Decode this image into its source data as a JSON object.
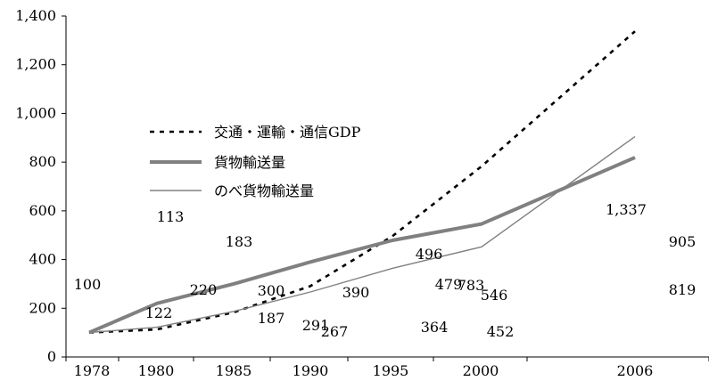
{
  "chart_data": {
    "type": "line",
    "title": "",
    "xlabel": "",
    "ylabel": "",
    "categories": [
      "1978",
      "1980",
      "1985",
      "1990",
      "1995",
      "2000",
      "2006"
    ],
    "ylim": [
      0,
      1400
    ],
    "yticks": [
      0,
      200,
      400,
      600,
      800,
      1000,
      1200,
      1400
    ],
    "ytick_labels": [
      "0",
      "200",
      "400",
      "600",
      "800",
      "1,000",
      "1,200",
      "1,400"
    ],
    "grid": false,
    "legend_position": "center-left",
    "series": [
      {
        "name": "交通・運輸・通信GDP",
        "style": "dotted",
        "color": "#000000",
        "values": [
          100,
          113,
          183,
          291,
          496,
          783,
          1337
        ],
        "labels": [
          "100",
          "113",
          "183",
          "291",
          "496",
          "783",
          "1,337"
        ]
      },
      {
        "name": "貨物輸送量",
        "style": "thick",
        "color": "#808080",
        "values": [
          100,
          220,
          300,
          390,
          479,
          546,
          819
        ],
        "labels": [
          "",
          "220",
          "300",
          "390",
          "479",
          "546",
          "819"
        ]
      },
      {
        "name": "のべ貨物輸送量",
        "style": "thin",
        "color": "#808080",
        "values": [
          100,
          122,
          187,
          267,
          364,
          452,
          905
        ],
        "labels": [
          "",
          "122",
          "187",
          "267",
          "364",
          "452",
          "905"
        ]
      }
    ]
  }
}
